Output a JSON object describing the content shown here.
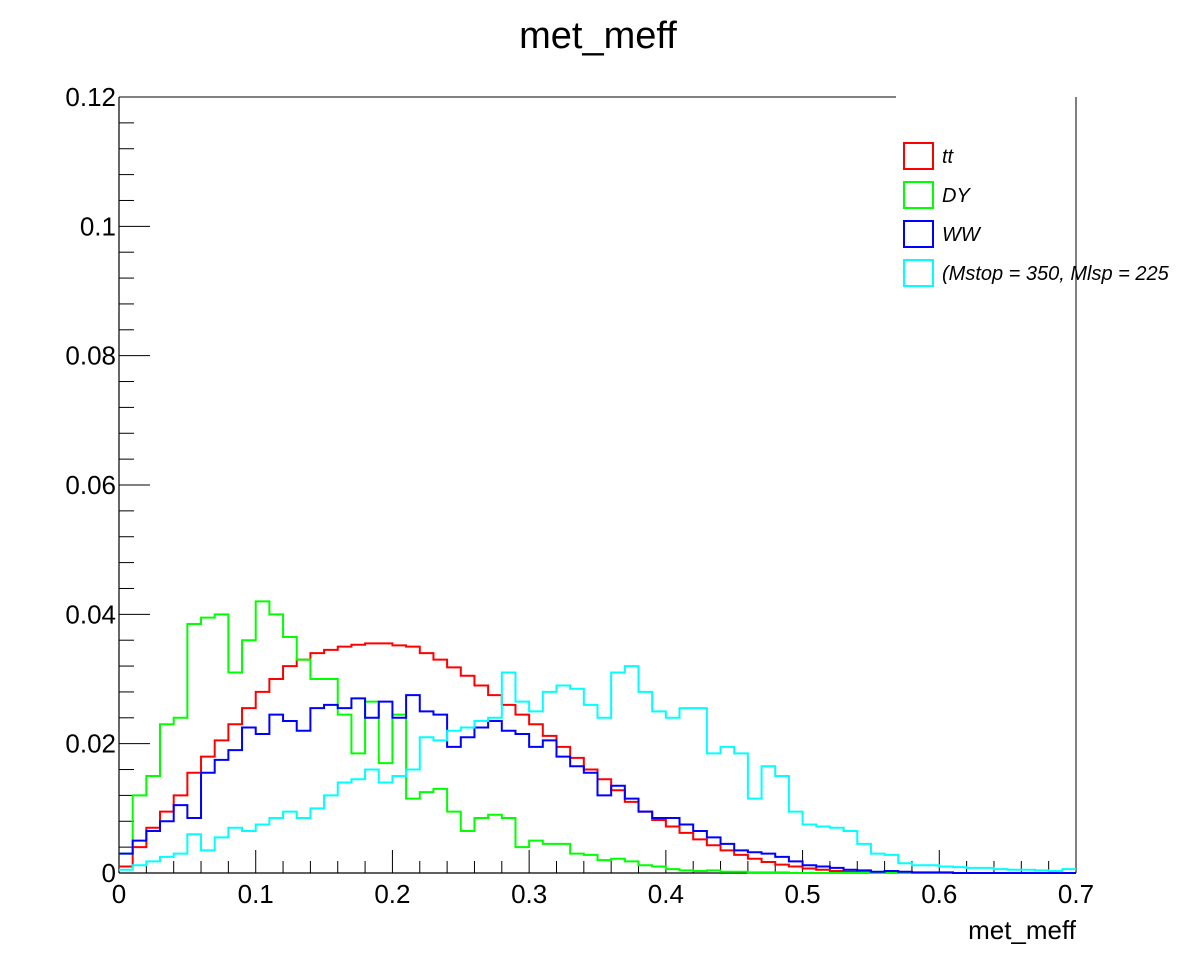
{
  "chart_data": {
    "type": "line",
    "title": "met_meff",
    "xlabel": "met_meff",
    "ylabel": "",
    "xlim": [
      0,
      0.7
    ],
    "ylim": [
      0,
      0.12
    ],
    "grid": false,
    "legend_position": "top-right",
    "xticks": [
      "0",
      "0.1",
      "0.2",
      "0.3",
      "0.4",
      "0.5",
      "0.6",
      "0.7"
    ],
    "yticks": [
      "0",
      "0.02",
      "0.04",
      "0.06",
      "0.08",
      "0.1",
      "0.12"
    ],
    "bin_edges_start": 0,
    "bin_width": 0.01,
    "series": [
      {
        "name": "tt",
        "color": "#ff0000",
        "values": [
          0.001,
          0.004,
          0.007,
          0.0095,
          0.012,
          0.0155,
          0.018,
          0.0205,
          0.023,
          0.0255,
          0.028,
          0.03,
          0.032,
          0.033,
          0.034,
          0.0345,
          0.035,
          0.0353,
          0.0355,
          0.0355,
          0.0352,
          0.035,
          0.034,
          0.033,
          0.0318,
          0.0305,
          0.029,
          0.0275,
          0.026,
          0.0245,
          0.023,
          0.0212,
          0.0195,
          0.0178,
          0.016,
          0.0145,
          0.0128,
          0.011,
          0.0095,
          0.0082,
          0.0072,
          0.0062,
          0.0052,
          0.0043,
          0.0035,
          0.0028,
          0.0022,
          0.0017,
          0.0013,
          0.001,
          0.0007,
          0.0005,
          0.0003,
          0.0002,
          0.0001,
          0.0001,
          0,
          0,
          0,
          0,
          0,
          0,
          0,
          0,
          0,
          0,
          0,
          0,
          0,
          0
        ]
      },
      {
        "name": "DY",
        "color": "#00ff00",
        "values": [
          0.003,
          0.012,
          0.015,
          0.023,
          0.024,
          0.0385,
          0.0395,
          0.04,
          0.031,
          0.036,
          0.042,
          0.04,
          0.0365,
          0.033,
          0.03,
          0.03,
          0.0245,
          0.0185,
          0.0265,
          0.017,
          0.0245,
          0.0115,
          0.0125,
          0.013,
          0.0095,
          0.0065,
          0.0085,
          0.009,
          0.0085,
          0.004,
          0.005,
          0.0045,
          0.0045,
          0.003,
          0.0028,
          0.002,
          0.0022,
          0.0018,
          0.0012,
          0.001,
          0.0006,
          0.0004,
          0.0003,
          0.0004,
          0.0002,
          0.0002,
          0.0001,
          0.0001,
          0.0001,
          0,
          0,
          0,
          0,
          0,
          0,
          0,
          0,
          0,
          0,
          0,
          0,
          0,
          0,
          0,
          0,
          0,
          0,
          0,
          0,
          0
        ]
      },
      {
        "name": "WW",
        "color": "#0000ff",
        "values": [
          0.003,
          0.005,
          0.0065,
          0.008,
          0.0105,
          0.0085,
          0.0155,
          0.0175,
          0.019,
          0.0225,
          0.0215,
          0.0245,
          0.0235,
          0.022,
          0.0255,
          0.026,
          0.0255,
          0.027,
          0.024,
          0.0265,
          0.024,
          0.0275,
          0.025,
          0.0245,
          0.0195,
          0.021,
          0.0225,
          0.0235,
          0.022,
          0.0215,
          0.0195,
          0.0205,
          0.018,
          0.0165,
          0.0155,
          0.012,
          0.0135,
          0.0115,
          0.0095,
          0.0085,
          0.0085,
          0.0075,
          0.0065,
          0.0055,
          0.0045,
          0.0035,
          0.0032,
          0.003,
          0.0025,
          0.0018,
          0.0012,
          0.001,
          0.0008,
          0.0005,
          0.0004,
          0.0002,
          0.0003,
          0.0002,
          0.0001,
          0.0001,
          0.0001,
          0,
          0,
          0,
          0,
          0,
          0,
          0,
          0,
          0
        ]
      },
      {
        "name": "(Mstop = 350, Mlsp = 225",
        "color": "#00ffff",
        "values": [
          0.0005,
          0.0012,
          0.0018,
          0.0025,
          0.003,
          0.006,
          0.0035,
          0.0055,
          0.007,
          0.0065,
          0.0075,
          0.0085,
          0.0095,
          0.0085,
          0.01,
          0.012,
          0.014,
          0.0145,
          0.016,
          0.014,
          0.015,
          0.016,
          0.021,
          0.0205,
          0.022,
          0.0225,
          0.0235,
          0.024,
          0.031,
          0.0265,
          0.025,
          0.028,
          0.029,
          0.0285,
          0.026,
          0.024,
          0.031,
          0.032,
          0.028,
          0.025,
          0.024,
          0.0255,
          0.0255,
          0.0185,
          0.0195,
          0.0185,
          0.0115,
          0.0165,
          0.015,
          0.0095,
          0.0075,
          0.0072,
          0.007,
          0.0065,
          0.0045,
          0.003,
          0.0028,
          0.0015,
          0.0012,
          0.0012,
          0.001,
          0.0009,
          0.0008,
          0.0008,
          0.0006,
          0.0005,
          0.0005,
          0.0004,
          0.0003,
          0.0006
        ]
      }
    ]
  }
}
